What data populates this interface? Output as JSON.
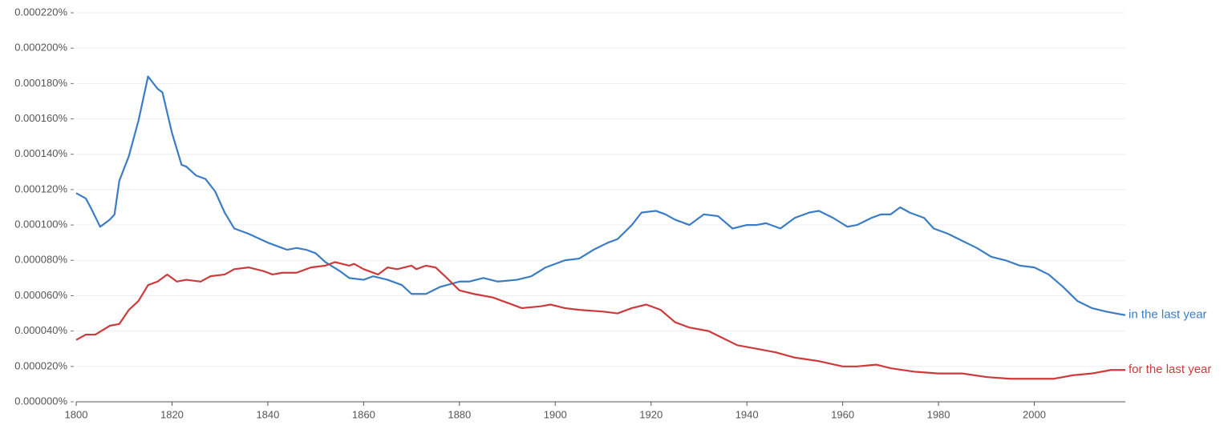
{
  "chart_data": {
    "type": "line",
    "xlim": [
      1800,
      2019
    ],
    "xticks": [
      1800,
      1820,
      1840,
      1860,
      1880,
      1900,
      1920,
      1940,
      1960,
      1980,
      2000
    ],
    "ylim": [
      0,
      0.00022
    ],
    "yticks": [
      {
        "value": 0,
        "label": "0.000000%"
      },
      {
        "value": 2e-05,
        "label": "0.000020%"
      },
      {
        "value": 4e-05,
        "label": "0.000040%"
      },
      {
        "value": 6e-05,
        "label": "0.000060%"
      },
      {
        "value": 8e-05,
        "label": "0.000080%"
      },
      {
        "value": 0.0001,
        "label": "0.000100%"
      },
      {
        "value": 0.00012,
        "label": "0.000120%"
      },
      {
        "value": 0.00014,
        "label": "0.000140%"
      },
      {
        "value": 0.00016,
        "label": "0.000160%"
      },
      {
        "value": 0.00018,
        "label": "0.000180%"
      },
      {
        "value": 0.0002,
        "label": "0.000200%"
      },
      {
        "value": 0.00022,
        "label": "0.000220%"
      }
    ],
    "grid": true,
    "series": [
      {
        "name": "in the last year",
        "color": "#3b7dc4",
        "x": [
          1800,
          1802,
          1803,
          1805,
          1807,
          1808,
          1809,
          1811,
          1813,
          1815,
          1817,
          1818,
          1820,
          1822,
          1823,
          1825,
          1827,
          1829,
          1831,
          1833,
          1836,
          1840,
          1843,
          1844,
          1846,
          1848,
          1850,
          1852,
          1855,
          1857,
          1860,
          1862,
          1865,
          1868,
          1870,
          1873,
          1876,
          1880,
          1882,
          1885,
          1888,
          1892,
          1895,
          1898,
          1902,
          1905,
          1908,
          1911,
          1913,
          1916,
          1918,
          1921,
          1923,
          1925,
          1928,
          1931,
          1934,
          1937,
          1940,
          1942,
          1944,
          1947,
          1950,
          1953,
          1955,
          1958,
          1961,
          1963,
          1966,
          1968,
          1970,
          1972,
          1974,
          1977,
          1979,
          1982,
          1985,
          1988,
          1991,
          1994,
          1997,
          2000,
          2003,
          2006,
          2009,
          2012,
          2015,
          2019
        ],
        "values": [
          0.000118,
          0.000115,
          0.00011,
          9.9e-05,
          0.000103,
          0.000106,
          0.000125,
          0.000139,
          0.000159,
          0.000184,
          0.000177,
          0.000175,
          0.000152,
          0.000134,
          0.000133,
          0.000128,
          0.000126,
          0.000119,
          0.000107,
          9.8e-05,
          9.5e-05,
          9e-05,
          8.7e-05,
          8.6e-05,
          8.7e-05,
          8.6e-05,
          8.4e-05,
          7.9e-05,
          7.4e-05,
          7e-05,
          6.9e-05,
          7.1e-05,
          6.9e-05,
          6.6e-05,
          6.1e-05,
          6.1e-05,
          6.5e-05,
          6.8e-05,
          6.8e-05,
          7e-05,
          6.8e-05,
          6.9e-05,
          7.1e-05,
          7.6e-05,
          8e-05,
          8.1e-05,
          8.6e-05,
          9e-05,
          9.2e-05,
          0.0001,
          0.000107,
          0.000108,
          0.000106,
          0.000103,
          0.0001,
          0.000106,
          0.000105,
          9.8e-05,
          0.0001,
          0.0001,
          0.000101,
          9.8e-05,
          0.000104,
          0.000107,
          0.000108,
          0.000104,
          9.9e-05,
          0.0001,
          0.000104,
          0.000106,
          0.000106,
          0.00011,
          0.000107,
          0.000104,
          9.8e-05,
          9.5e-05,
          9.1e-05,
          8.7e-05,
          8.2e-05,
          8e-05,
          7.7e-05,
          7.6e-05,
          7.2e-05,
          6.5e-05,
          5.7e-05,
          5.3e-05,
          5.1e-05,
          4.9e-05
        ]
      },
      {
        "name": "for the last year",
        "color": "#cc3b3b",
        "x": [
          1800,
          1802,
          1804,
          1807,
          1809,
          1811,
          1813,
          1815,
          1817,
          1819,
          1821,
          1823,
          1826,
          1828,
          1831,
          1833,
          1836,
          1839,
          1841,
          1843,
          1846,
          1849,
          1852,
          1854,
          1857,
          1858,
          1860,
          1863,
          1865,
          1867,
          1870,
          1871,
          1873,
          1875,
          1877,
          1880,
          1883,
          1887,
          1890,
          1893,
          1897,
          1899,
          1902,
          1905,
          1910,
          1913,
          1916,
          1919,
          1922,
          1925,
          1928,
          1932,
          1935,
          1938,
          1942,
          1946,
          1950,
          1955,
          1960,
          1963,
          1967,
          1970,
          1975,
          1980,
          1985,
          1990,
          1995,
          2000,
          2004,
          2008,
          2012,
          2016,
          2019
        ],
        "values": [
          3.5e-05,
          3.8e-05,
          3.8e-05,
          4.3e-05,
          4.4e-05,
          5.2e-05,
          5.7e-05,
          6.6e-05,
          6.8e-05,
          7.2e-05,
          6.8e-05,
          6.9e-05,
          6.8e-05,
          7.1e-05,
          7.2e-05,
          7.5e-05,
          7.6e-05,
          7.4e-05,
          7.2e-05,
          7.3e-05,
          7.3e-05,
          7.6e-05,
          7.7e-05,
          7.9e-05,
          7.7e-05,
          7.8e-05,
          7.5e-05,
          7.2e-05,
          7.6e-05,
          7.5e-05,
          7.7e-05,
          7.5e-05,
          7.7e-05,
          7.6e-05,
          7.1e-05,
          6.3e-05,
          6.1e-05,
          5.9e-05,
          5.6e-05,
          5.3e-05,
          5.4e-05,
          5.5e-05,
          5.3e-05,
          5.2e-05,
          5.1e-05,
          5e-05,
          5.3e-05,
          5.5e-05,
          5.2e-05,
          4.5e-05,
          4.2e-05,
          4e-05,
          3.6e-05,
          3.2e-05,
          3e-05,
          2.8e-05,
          2.5e-05,
          2.3e-05,
          2e-05,
          2e-05,
          2.1e-05,
          1.9e-05,
          1.7e-05,
          1.6e-05,
          1.6e-05,
          1.4e-05,
          1.3e-05,
          1.3e-05,
          1.3e-05,
          1.5e-05,
          1.6e-05,
          1.8e-05,
          1.8e-05
        ]
      }
    ]
  }
}
